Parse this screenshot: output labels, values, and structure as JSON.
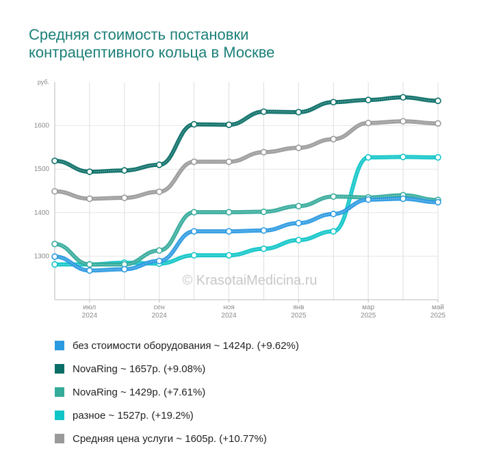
{
  "title_lines": [
    "Средняя стоимость постановки",
    "контрацептивного кольца в Москве"
  ],
  "watermark": "© KrasotaiMedicina.ru",
  "chart_data": {
    "type": "line",
    "title": "Средняя стоимость постановки контрацептивного кольца в Москве",
    "y_unit": "руб.",
    "ylim": [
      1200,
      1700
    ],
    "y_ticks": [
      1300,
      1400,
      1500,
      1600
    ],
    "grid": true,
    "x_tick_labels": [
      {
        "month": "июл",
        "year": "2024",
        "index": 1
      },
      {
        "month": "сен",
        "year": "2024",
        "index": 3
      },
      {
        "month": "ноя",
        "year": "2024",
        "index": 5
      },
      {
        "month": "янв",
        "year": "2025",
        "index": 7
      },
      {
        "month": "мар",
        "year": "2025",
        "index": 9
      },
      {
        "month": "май",
        "year": "2025",
        "index": 11
      }
    ],
    "x_points": [
      "июн 2024",
      "июл 2024",
      "авг 2024",
      "сен 2024",
      "окт 2024",
      "ноя 2024",
      "дек 2024",
      "янв 2025",
      "фев 2025",
      "мар 2025",
      "апр 2025",
      "май 2025"
    ],
    "series": [
      {
        "name": "без стоимости оборудования",
        "color": "#2b9ae0",
        "values": [
          1299,
          1267,
          1270,
          1289,
          1357,
          1357,
          1359,
          1376,
          1397,
          1430,
          1432,
          1424
        ]
      },
      {
        "name": "NovaRing",
        "color": "#0a6e66",
        "values": [
          1519,
          1494,
          1497,
          1510,
          1603,
          1602,
          1632,
          1631,
          1654,
          1659,
          1665,
          1657
        ]
      },
      {
        "name": "NovaRing",
        "color": "#35ab9b",
        "values": [
          1328,
          1281,
          1281,
          1313,
          1401,
          1401,
          1402,
          1415,
          1437,
          1435,
          1440,
          1429
        ]
      },
      {
        "name": "разное",
        "color": "#10c5c8",
        "values": [
          1281,
          1281,
          1285,
          1283,
          1302,
          1302,
          1317,
          1337,
          1357,
          1527,
          1528,
          1527
        ]
      },
      {
        "name": "Средняя цена услуги",
        "color": "#9a9a9a",
        "values": [
          1449,
          1432,
          1434,
          1448,
          1517,
          1517,
          1539,
          1549,
          1569,
          1606,
          1610,
          1605
        ]
      }
    ]
  },
  "legend": [
    {
      "color": "#2b9ae0",
      "label": "без стоимости оборудования ~ 1424р. (+9.62%)"
    },
    {
      "color": "#0a6e66",
      "label": "NovaRing ~ 1657р. (+9.08%)"
    },
    {
      "color": "#35ab9b",
      "label": "NovaRing ~ 1429р. (+7.61%)"
    },
    {
      "color": "#10c5c8",
      "label": "разное ~ 1527р. (+19.2%)"
    },
    {
      "color": "#9a9a9a",
      "label": "Средняя цена услуги ~ 1605р. (+10.77%)"
    }
  ]
}
